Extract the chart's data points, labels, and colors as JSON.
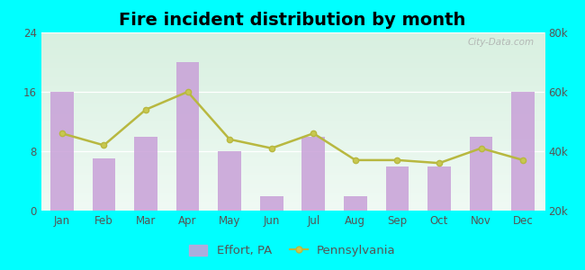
{
  "title": "Fire incident distribution by month",
  "months": [
    "Jan",
    "Feb",
    "Mar",
    "Apr",
    "May",
    "Jun",
    "Jul",
    "Aug",
    "Sep",
    "Oct",
    "Nov",
    "Dec"
  ],
  "effort_pa": [
    16,
    7,
    10,
    20,
    8,
    2,
    10,
    2,
    6,
    6,
    10,
    16
  ],
  "pennsylvania": [
    46000,
    42000,
    54000,
    60000,
    44000,
    41000,
    46000,
    37000,
    37000,
    36000,
    41000,
    37000
  ],
  "bar_color": "#c8a0d8",
  "bar_alpha": 0.85,
  "line_color": "#b8b840",
  "line_marker_color": "#c8c850",
  "background_color": "#00ffff",
  "grad_top": "#d8f0e0",
  "grad_bottom": "#f0faf4",
  "left_ylim": [
    0,
    24
  ],
  "right_ylim": [
    20000,
    80000
  ],
  "left_yticks": [
    0,
    8,
    16,
    24
  ],
  "right_yticks": [
    20000,
    40000,
    60000,
    80000
  ],
  "right_yticklabels": [
    "20k",
    "40k",
    "60k",
    "80k"
  ],
  "title_fontsize": 14,
  "tick_fontsize": 8.5,
  "legend_fontsize": 9.5,
  "watermark": "City-Data.com",
  "watermark_icon": "ⓘ"
}
